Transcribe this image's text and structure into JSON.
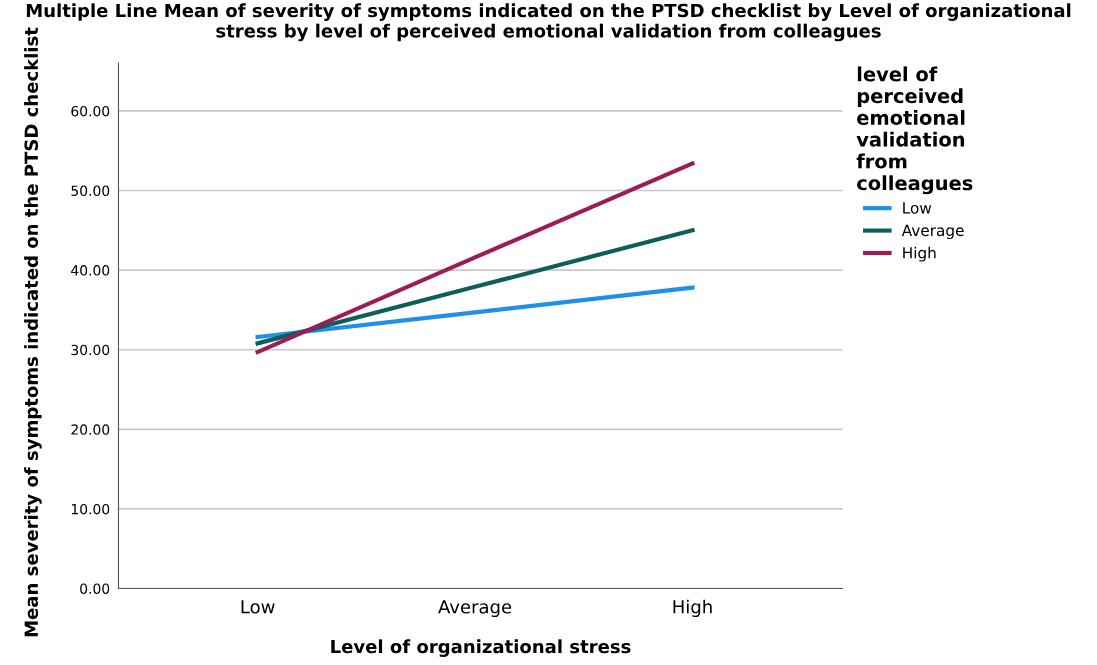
{
  "chart_data": {
    "type": "line",
    "title": "Multiple Line Mean of severity of symptoms indicated on the PTSD checklist by Level of organizational stress by level of perceived emotional validation from colleagues",
    "xlabel": "Level of organizational stress",
    "ylabel": "Mean severity of symptoms indicated on the PTSD checklist",
    "legend_title": "level of perceived emotional validation from colleagues",
    "categories": [
      "Low",
      "Average",
      "High"
    ],
    "series": [
      {
        "name": "Low",
        "color": "#1e90e8",
        "values": [
          31.6,
          34.7,
          37.8
        ]
      },
      {
        "name": "Average",
        "color": "#0e5e5a",
        "values": [
          30.8,
          37.9,
          45.0
        ]
      },
      {
        "name": "High",
        "color": "#9c1c56",
        "values": [
          29.7,
          41.6,
          53.4
        ]
      }
    ],
    "ylim": [
      0,
      66
    ],
    "yticks": [
      {
        "value": 0,
        "label": "0.00"
      },
      {
        "value": 10,
        "label": "10.00"
      },
      {
        "value": 20,
        "label": "20.00"
      },
      {
        "value": 30,
        "label": "30.00"
      },
      {
        "value": 40,
        "label": "40.00"
      },
      {
        "value": 50,
        "label": "50.00"
      },
      {
        "value": 60,
        "label": "60.00"
      }
    ],
    "grid": "y",
    "legend": "right",
    "marker": "none",
    "line_style": "solid"
  }
}
